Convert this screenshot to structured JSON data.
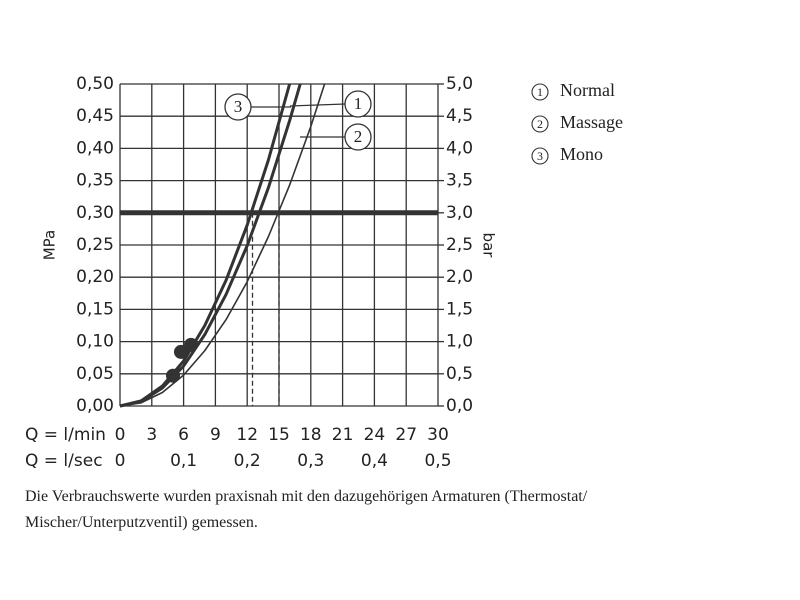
{
  "chart_data": {
    "type": "line",
    "x_label": "Q = l/min",
    "x2_label": "Q = l/sec",
    "y_label": "MPa",
    "y2_label": "bar",
    "xlim": [
      0,
      30
    ],
    "xticks": [
      0,
      3,
      6,
      9,
      12,
      15,
      18,
      21,
      24,
      27,
      30
    ],
    "x2ticks": [
      0,
      {
        "value": 0.1,
        "label": "0,1"
      },
      {
        "value": 0.2,
        "label": "0,2"
      },
      {
        "value": 0.3,
        "label": "0,3"
      },
      {
        "value": 0.4,
        "label": "0,4"
      },
      {
        "value": 0.5,
        "label": "0,5"
      }
    ],
    "ylim": [
      0,
      0.5
    ],
    "yticks": [
      {
        "value": 0,
        "label": "0,00"
      },
      {
        "value": 0.05,
        "label": "0,05"
      },
      {
        "value": 0.1,
        "label": "0,10"
      },
      {
        "value": 0.15,
        "label": "0,15"
      },
      {
        "value": 0.2,
        "label": "0,20"
      },
      {
        "value": 0.25,
        "label": "0,25"
      },
      {
        "value": 0.3,
        "label": "0,30"
      },
      {
        "value": 0.35,
        "label": "0,35"
      },
      {
        "value": 0.4,
        "label": "0,40"
      },
      {
        "value": 0.45,
        "label": "0,45"
      },
      {
        "value": 0.5,
        "label": "0,50"
      }
    ],
    "y2lim": [
      0,
      5
    ],
    "y2ticks": [
      {
        "value": 0,
        "label": "0,0"
      },
      {
        "value": 0.5,
        "label": "0,5"
      },
      {
        "value": 1,
        "label": "1,0"
      },
      {
        "value": 1.5,
        "label": "1,5"
      },
      {
        "value": 2,
        "label": "2,0"
      },
      {
        "value": 2.5,
        "label": "2,5"
      },
      {
        "value": 3,
        "label": "3,0"
      },
      {
        "value": 3.5,
        "label": "3,5"
      },
      {
        "value": 4,
        "label": "4,0"
      },
      {
        "value": 4.5,
        "label": "4,5"
      },
      {
        "value": 5,
        "label": "5,0"
      }
    ],
    "grid": true,
    "reference_y": 0.3,
    "reference_x": [
      12.5,
      15
    ],
    "series": [
      {
        "id": "1",
        "name": "Normal",
        "color": "#333333",
        "width": 3,
        "x": [
          0,
          2,
          4,
          6,
          8,
          10,
          12,
          14,
          16,
          17
        ],
        "values": [
          0,
          0.007,
          0.028,
          0.062,
          0.111,
          0.173,
          0.249,
          0.339,
          0.443,
          0.5
        ]
      },
      {
        "id": "2",
        "name": "Massage",
        "color": "#333333",
        "width": 1.6,
        "x": [
          0,
          2,
          4,
          6,
          8,
          10,
          12,
          14,
          16,
          18,
          19.3
        ],
        "values": [
          0,
          0.005,
          0.021,
          0.048,
          0.086,
          0.134,
          0.193,
          0.263,
          0.343,
          0.434,
          0.5
        ]
      },
      {
        "id": "3",
        "name": "Mono",
        "color": "#333333",
        "width": 3,
        "x": [
          0,
          2,
          4,
          6,
          8,
          10,
          12,
          14,
          16
        ],
        "values": [
          0,
          0.008,
          0.031,
          0.07,
          0.125,
          0.195,
          0.281,
          0.382,
          0.5
        ]
      }
    ],
    "points": {
      "x": [
        5.0,
        5.75,
        6.7
      ],
      "values": [
        0.047,
        0.084,
        0.095
      ]
    }
  },
  "footnote": [
    "Die Verbrauchswerte wurden praxisnah mit den dazugehörigen Armaturen (Thermostat/",
    "Mischer/Unterputzventil) gemessen."
  ]
}
